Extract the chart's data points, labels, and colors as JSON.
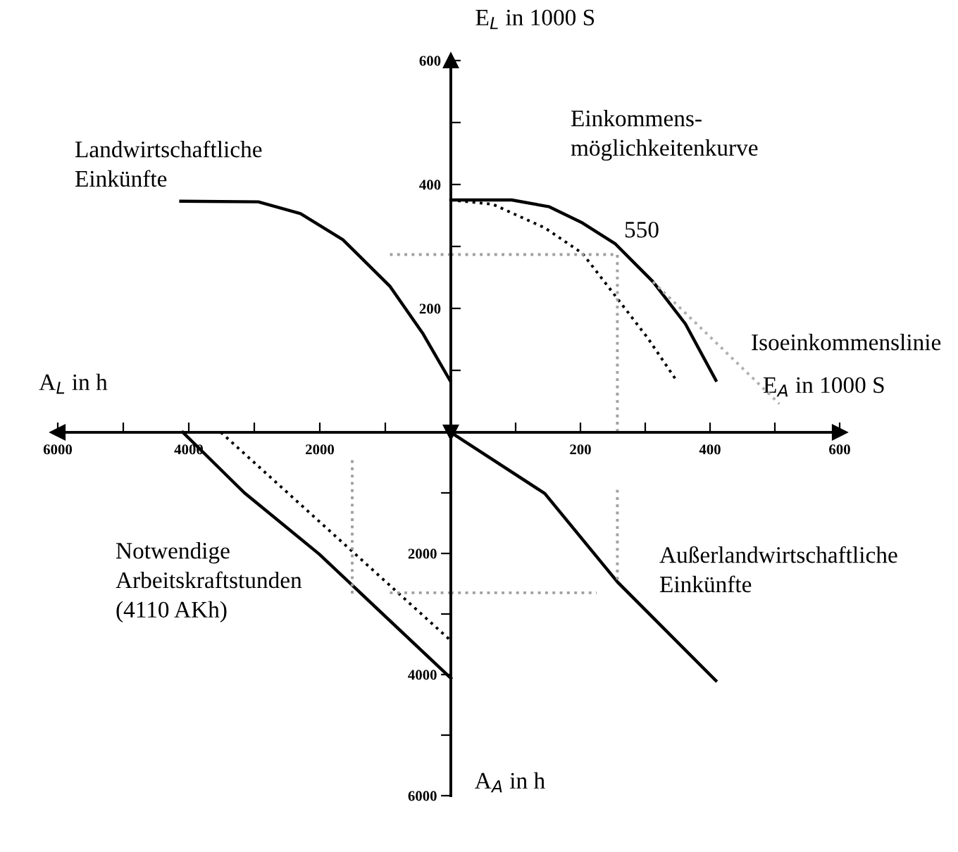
{
  "chart_data": [
    {
      "type": "line",
      "xlabel": "E$_{A}$ in 1000 S",
      "ylabel": "E$_{L}$ in 1000 S",
      "xlim": [
        0,
        600
      ],
      "ylim": [
        0,
        600
      ],
      "xticks": [
        {
          "value": 100,
          "label": null
        },
        200,
        {
          "value": 300,
          "label": null
        },
        400,
        {
          "value": 500,
          "label": null
        },
        600
      ],
      "yticks": [
        {
          "value": 100,
          "label": null
        },
        200,
        {
          "value": 300,
          "label": null
        },
        400,
        {
          "value": 500,
          "label": null
        },
        600
      ],
      "series": [
        {
          "color": "#000000",
          "line_style": "solid",
          "x": [
            0,
            94,
            152,
            203,
            254,
            312,
            362,
            409
          ],
          "values": [
            375,
            375,
            364,
            338,
            304,
            243,
            175,
            84
          ]
        },
        {
          "color": "#000000",
          "line_style": "dotted",
          "x": [
            0,
            65,
            145,
            203,
            254,
            304,
            348
          ],
          "values": [
            375,
            368,
            330,
            289,
            220,
            152,
            84
          ]
        },
        {
          "color": "#b0b0b0",
          "line_style": "dotted",
          "x": [
            312,
            507
          ],
          "values": [
            243,
            46
          ]
        },
        {
          "color": "#a0a0a0",
          "line_style": "dotted",
          "x": [
            0,
            257,
            257
          ],
          "values": [
            287,
            287,
            0
          ]
        }
      ],
      "annotations": [
        "Einkommens-\nmöglichkeitenkurve",
        "550",
        "Isoeinkommenslinie"
      ]
    },
    {
      "type": "line",
      "xlabel": "A$_{L}$ in h",
      "xlim": [
        6000,
        0
      ],
      "ylim": [
        0,
        600
      ],
      "tick_labels": "x",
      "xticks": [
        {
          "value": 1000,
          "label": null
        },
        2000,
        {
          "value": 3000,
          "label": null
        },
        4000,
        {
          "value": 5000,
          "label": null
        },
        6000
      ],
      "series": [
        {
          "color": "#000000",
          "line_style": "solid",
          "x": [
            4122,
            2939,
            2294,
            1649,
            932,
            430,
            14
          ],
          "values": [
            373,
            372,
            353,
            311,
            236,
            160,
            84
          ]
        },
        {
          "color": "#a0a0a0",
          "line_style": "dotted",
          "x": [
            930,
            0
          ],
          "values": [
            287,
            287
          ]
        }
      ],
      "annotations": [
        "Landwirtschaftliche\nEinkünfte"
      ]
    },
    {
      "type": "line",
      "ylabel": "A$_{A}$ in h",
      "xlim": [
        6000,
        0
      ],
      "ylim": [
        6000,
        0
      ],
      "tick_labels": "y",
      "yticks": [
        {
          "value": 1000,
          "label": null
        },
        2000,
        {
          "value": 3000,
          "label": null
        },
        4000,
        {
          "value": 5000,
          "label": null
        },
        6000
      ],
      "series": [
        {
          "color": "#000000",
          "line_style": "solid",
          "x": [
            4090,
            3150,
            2010,
            0
          ],
          "values": [
            0,
            1000,
            2010,
            4060
          ]
        },
        {
          "color": "#000000",
          "line_style": "dotted",
          "x": [
            3510,
            0
          ],
          "values": [
            0,
            3440
          ]
        },
        {
          "color": "#a0a0a0",
          "line_style": "dotted",
          "x": [
            930,
            0
          ],
          "values": [
            2650,
            2650
          ]
        },
        {
          "color": "#a0a0a0",
          "line_style": "dotted",
          "x": [
            1505,
            1505
          ],
          "values": [
            460,
            2670
          ]
        }
      ],
      "annotations": [
        "Notwendige\nArbeitskraftstunden\n(4110 AKh)"
      ]
    },
    {
      "type": "line",
      "xlim": [
        0,
        600
      ],
      "ylim": [
        6000,
        0
      ],
      "tick_labels": false,
      "series": [
        {
          "color": "#000000",
          "line_style": "solid",
          "x": [
            0,
            145,
            257,
            409
          ],
          "values": [
            0,
            1010,
            2470,
            4100
          ]
        },
        {
          "color": "#a0a0a0",
          "line_style": "dotted",
          "x": [
            0,
            225
          ],
          "values": [
            2650,
            2650
          ]
        },
        {
          "color": "#a0a0a0",
          "line_style": "dotted",
          "x": [
            257,
            257
          ],
          "values": [
            950,
            2500
          ]
        }
      ],
      "annotations": [
        "Außerlandwirtschaftliche\nEinkünfte"
      ]
    }
  ]
}
